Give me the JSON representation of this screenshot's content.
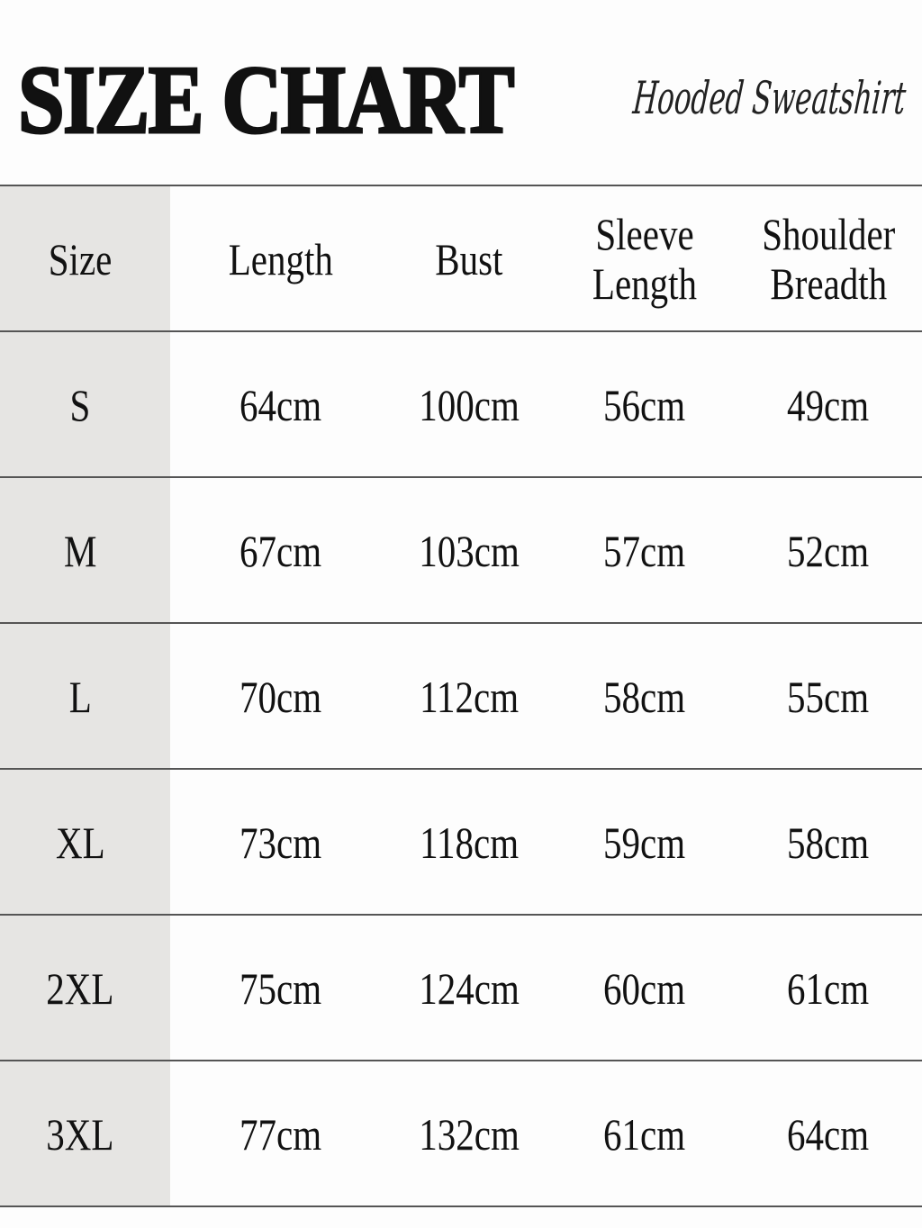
{
  "title": "SIZE CHART",
  "subtitle": "Hooded Sweatshirt",
  "colors": {
    "size_column_bg": "#e6e5e3",
    "text": "#111111",
    "rule": "#555555"
  },
  "headers": [
    "Size",
    "Length",
    "Bust",
    "Sleeve Length",
    "Shoulder Breadth"
  ],
  "rows": [
    [
      "S",
      "64cm",
      "100cm",
      "56cm",
      "49cm"
    ],
    [
      "M",
      "67cm",
      "103cm",
      "57cm",
      "52cm"
    ],
    [
      "L",
      "70cm",
      "112cm",
      "58cm",
      "55cm"
    ],
    [
      "XL",
      "73cm",
      "118cm",
      "59cm",
      "58cm"
    ],
    [
      "2XL",
      "75cm",
      "124cm",
      "60cm",
      "61cm"
    ],
    [
      "3XL",
      "77cm",
      "132cm",
      "61cm",
      "64cm"
    ]
  ]
}
